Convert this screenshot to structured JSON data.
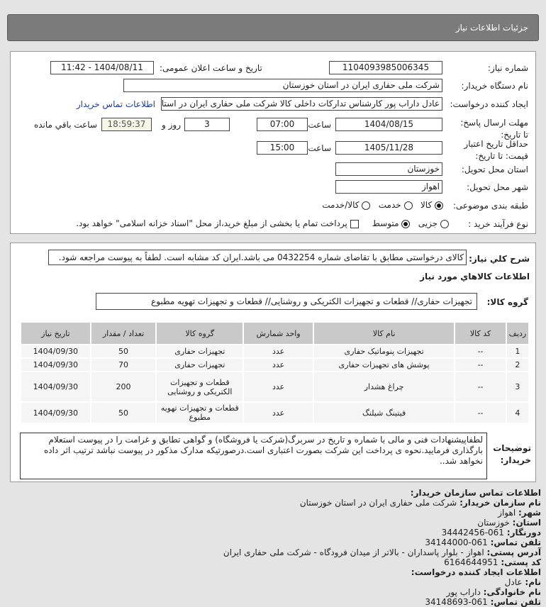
{
  "header": {
    "title": "جزئیات اطلاعات نیاز"
  },
  "form": {
    "need_number_label": "شماره نیاز:",
    "need_number": "1104093985006345",
    "announce_label": "تاریخ و ساعت اعلان عمومی:",
    "announce_value": "1404/08/11 - 11:42",
    "buyer_org_label": "نام دستگاه خریدار:",
    "buyer_org": "شرکت ملی حفاری ایران در استان خوزستان",
    "creator_label": "ایجاد کننده درخواست:",
    "creator": "عادل داراب پور کارشناس تدارکات داخلی کالا شرکت ملی حفاری ایران در استان خوزستان",
    "contact_link": "اطلاعات تماس خریدار",
    "deadline_label": "مهلت ارسال پاسخ: تا تاریخ:",
    "deadline_date": "1404/08/15",
    "time_label": "ساعت",
    "deadline_time": "07:00",
    "days": "3",
    "days_label": "روز و",
    "remaining": "18:59:37",
    "remaining_label": "ساعت باقي مانده",
    "validity_label": "حداقل تاریخ اعتبار قیمت: تا تاریخ:",
    "validity_date": "1405/11/28",
    "validity_time": "15:00",
    "province_label": "استان محل تحویل:",
    "province": "خوزستان",
    "city_label": "شهر محل تحویل:",
    "city": "اهواز",
    "category_label": "طبقه بندی موضوعی:",
    "category_options": [
      "کالا",
      "خدمت",
      "کالا/خدمت"
    ],
    "category_selected": "کالا",
    "process_label": "نوع فرآیند خرید :",
    "process_options": [
      "جزیی",
      "متوسط"
    ],
    "process_selected": "متوسط",
    "payment_note": "پرداخت تمام یا بخشی از مبلغ خرید،از محل \"اسناد خزانه اسلامی\" خواهد بود."
  },
  "summary": {
    "label": "شرح کلي نياز:",
    "text": "کالای درخواستی مطابق با تقاضای شماره 0432254 می باشد.ایران کد مشابه است. لطفاً به پیوست مراجعه شود."
  },
  "goods_title": "اطلاعات کالاهاي مورد نياز",
  "goods_group": {
    "label": "گروه کالا:",
    "value": "تجهیزات حفاری// قطعات و تجهیزات الکتریکی و روشنایی// قطعات و تجهیزات تهویه مطبوع"
  },
  "table": {
    "headers": [
      "ردیف",
      "کد کالا",
      "نام کالا",
      "واحد شمارش",
      "گروه کالا",
      "تعداد / مقدار",
      "تاریخ نیاز"
    ],
    "rows": [
      [
        "1",
        "--",
        "تجهیزات پنوماتیک حفاری",
        "عدد",
        "تجهیزات حفاری",
        "50",
        "1404/09/30"
      ],
      [
        "2",
        "--",
        "پوشش های تجهیزات حفاری",
        "عدد",
        "تجهیزات حفاری",
        "70",
        "1404/09/30"
      ],
      [
        "3",
        "--",
        "چراغ هشدار",
        "عدد",
        "قطعات و تجهیزات الکتریکی و روشنایی",
        "200",
        "1404/09/30"
      ],
      [
        "4",
        "--",
        "فیتینگ شیلنگ",
        "عدد",
        "قطعات و تجهیزات تهویه مطبوع",
        "50",
        "1404/09/30"
      ]
    ]
  },
  "notes": {
    "label": "توضیحات خریدار:",
    "text": "لطفاپیشنهادات فنی و مالی با شماره و تاریخ در سربرگ(شرکت یا فروشگاه) و گواهی تطابق و غرامت را در پیوست استعلام بارگذاری فرمایید.نحوه ی پرداخت این شرکت بصورت اعتباری است.درصورتیکه مدارک مذکور در پیوست نباشد ترتیب اثر داده نخواهد شد.."
  },
  "contact": {
    "title": "اطلاعات تماس سازمان خریدار:",
    "items": [
      {
        "label": "نام سازمان خریدار:",
        "value": "شرکت ملی حفاری ایران در استان خوزستان"
      },
      {
        "label": "شهر:",
        "value": "اهواز"
      },
      {
        "label": "استان:",
        "value": "خوزستان"
      },
      {
        "label": "دورنگار:",
        "value": "061-34442456"
      },
      {
        "label": "تلفن تماس:",
        "value": "061-34144000"
      },
      {
        "label": "آدرس پستی:",
        "value": "اهواز - بلوار پاسداران - بالاتر از میدان فرودگاه - شرکت ملی حفاری ایران"
      },
      {
        "label": "کد پستی:",
        "value": "6164644951"
      }
    ],
    "creator_title": "اطلاعات ایجاد کننده درخواست:",
    "creator_items": [
      {
        "label": "نام:",
        "value": "عادل"
      },
      {
        "label": "نام خانوادگی:",
        "value": "داراب پور"
      },
      {
        "label": "تلفن تماس:",
        "value": "061-34148693"
      }
    ]
  }
}
